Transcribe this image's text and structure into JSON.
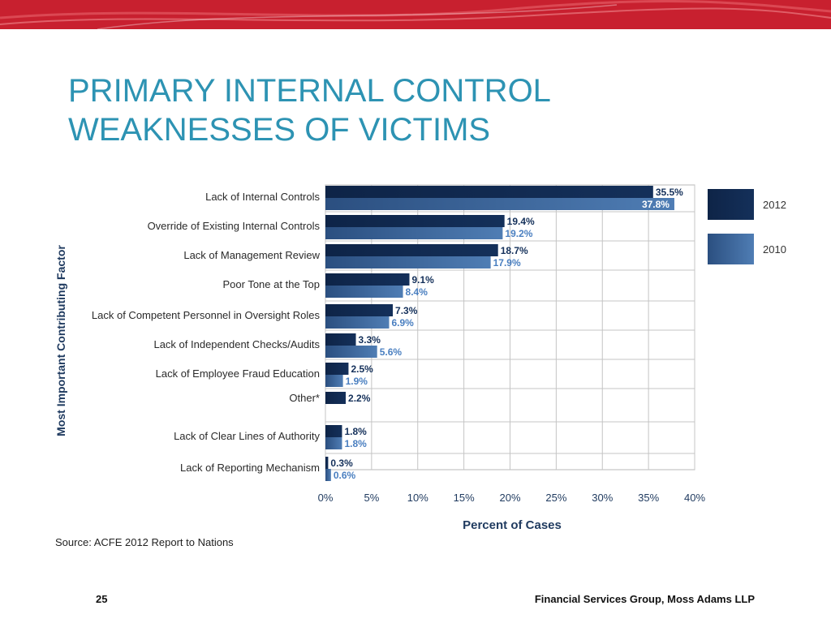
{
  "slide": {
    "title_line1": "PRIMARY INTERNAL CONTROL",
    "title_line2": "WEAKNESSES OF VICTIMS",
    "source": "Source: ACFE 2012 Report to Nations",
    "page_number": "25",
    "footer": "Financial Services Group, Moss Adams LLP"
  },
  "colors": {
    "banner_red": "#c8202f",
    "title": "#2d93b3",
    "series_2012": "#14305a",
    "series_2010": "#4f7db4",
    "label_2010": "#4a7fc0",
    "axis_text": "#1f3a5f"
  },
  "chart_data": {
    "type": "bar",
    "orientation": "horizontal",
    "ylabel": "Most Important Contributing Factor",
    "xlabel": "Percent of Cases",
    "xlim": [
      0,
      40
    ],
    "xticks": [
      "0%",
      "5%",
      "10%",
      "15%",
      "20%",
      "25%",
      "30%",
      "35%",
      "40%"
    ],
    "grid": true,
    "legend_position": "right",
    "categories": [
      "Lack of Internal Controls",
      "Override of Existing Internal Controls",
      "Lack of Management Review",
      "Poor Tone at the Top",
      "Lack of Competent Personnel in Oversight Roles",
      "Lack of Independent Checks/Audits",
      "Lack of Employee Fraud Education",
      "Other*",
      "Lack of Clear Lines of Authority",
      "Lack of Reporting Mechanism"
    ],
    "series": [
      {
        "name": "2012",
        "values": [
          35.5,
          19.4,
          18.7,
          9.1,
          7.3,
          3.3,
          2.5,
          2.2,
          1.8,
          0.3
        ],
        "labels": [
          "35.5%",
          "19.4%",
          "18.7%",
          "9.1%",
          "7.3%",
          "3.3%",
          "2.5%",
          "2.2%",
          "1.8%",
          "0.3%"
        ]
      },
      {
        "name": "2010",
        "values": [
          37.8,
          19.2,
          17.9,
          8.4,
          6.9,
          5.6,
          1.9,
          null,
          1.8,
          0.6
        ],
        "labels": [
          "37.8%",
          "19.2%",
          "17.9%",
          "8.4%",
          "6.9%",
          "5.6%",
          "1.9%",
          "",
          "1.8%",
          "0.6%"
        ]
      }
    ]
  }
}
